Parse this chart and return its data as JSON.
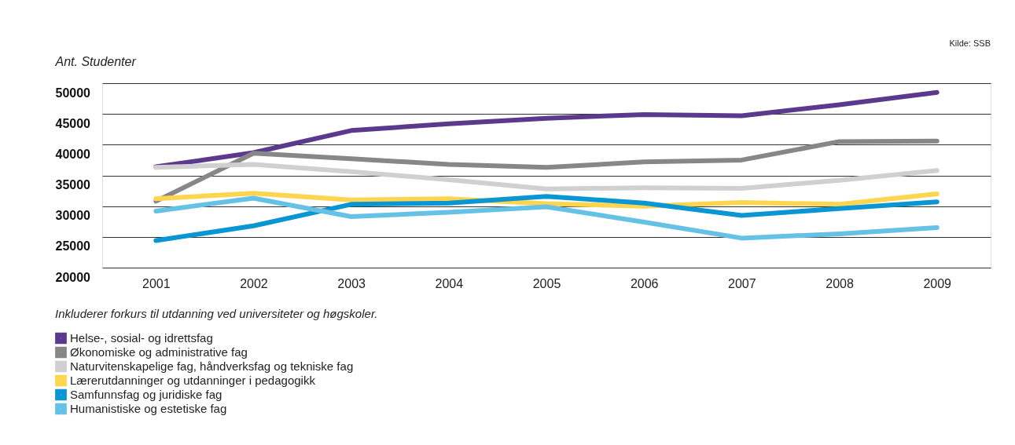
{
  "chart_data": {
    "type": "line",
    "ylabel": "Ant. Studenter",
    "categories": [
      "2001",
      "2002",
      "2003",
      "2004",
      "2005",
      "2006",
      "2007",
      "2008",
      "2009"
    ],
    "series": [
      {
        "name": "Helse-, sosial- og idrettsfag",
        "color": "#5b3a8e",
        "values": [
          36400,
          38700,
          42300,
          43400,
          44300,
          44900,
          44700,
          46500,
          48500
        ]
      },
      {
        "name": "Økonomiske og administrative fag",
        "color": "#878787",
        "values": [
          30800,
          38600,
          37700,
          36800,
          36300,
          37200,
          37500,
          40500,
          40600
        ]
      },
      {
        "name": "Naturvitenskapelige fag, håndverksfag og tekniske fag",
        "color": "#d0d0d0",
        "values": [
          36300,
          36800,
          35600,
          34300,
          32800,
          33000,
          32900,
          34200,
          35800
        ]
      },
      {
        "name": "Lærerutdanninger og utdanninger i pedagogikk",
        "color": "#fdd54f",
        "values": [
          31200,
          32100,
          31000,
          31200,
          30400,
          30000,
          30600,
          30300,
          32000
        ]
      },
      {
        "name": "Samfunnsfag og juridiske fag",
        "color": "#0a96d2",
        "values": [
          24400,
          26800,
          30300,
          30500,
          31600,
          30500,
          28500,
          29600,
          30700
        ]
      },
      {
        "name": "Humanistiske og estetiske fag",
        "color": "#66c1e6",
        "values": [
          29200,
          31300,
          28300,
          29000,
          29900,
          27400,
          24800,
          25500,
          26500
        ]
      }
    ],
    "ylim": [
      20000,
      50000
    ],
    "yticks": [
      20000,
      25000,
      30000,
      35000,
      40000,
      45000,
      50000
    ],
    "grid": "y",
    "legend": "bottom left",
    "marker": "none",
    "line_style": "solid",
    "annotations": [
      "Kilde: SSB",
      "Inkluderer forkurs til utdanning ved universiteter og høgskoler."
    ]
  }
}
